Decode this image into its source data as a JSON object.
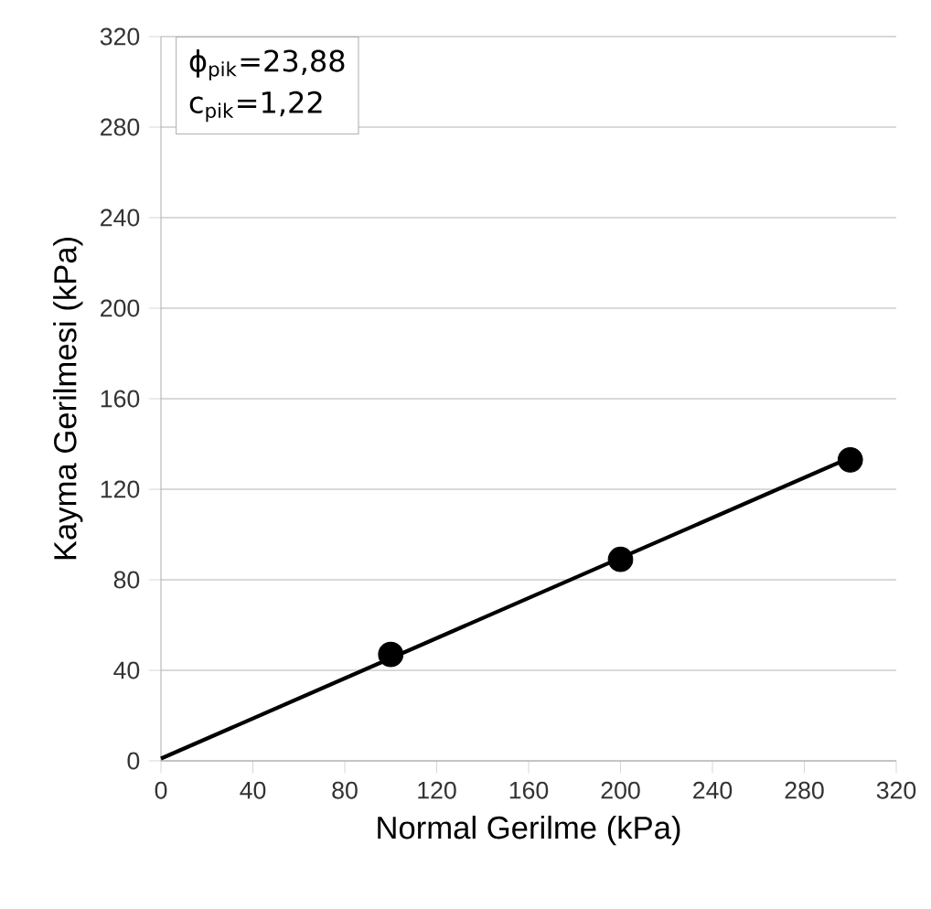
{
  "chart_data": {
    "type": "scatter",
    "xlabel": "Normal Gerilme (kPa)",
    "ylabel": "Kayma Gerilmesi (kPa)",
    "xlim": [
      0,
      320
    ],
    "ylim": [
      0,
      320
    ],
    "xticks": [
      0,
      40,
      80,
      120,
      160,
      200,
      240,
      280,
      320
    ],
    "yticks": [
      0,
      40,
      80,
      120,
      160,
      200,
      240,
      280,
      320
    ],
    "grid": "y",
    "series": [
      {
        "color": "#000000",
        "marker": "circle",
        "x": [
          100,
          200,
          300
        ],
        "values": [
          47,
          89,
          133
        ]
      },
      {
        "type": "line",
        "color": "#000000",
        "marker": "none",
        "line_style": "solid",
        "x": [
          0,
          300
        ],
        "values": [
          1,
          134
        ]
      }
    ],
    "annotations": [
      "ϕ$_{pik}$=23,88",
      "c$_{pik}$=1,22"
    ]
  }
}
